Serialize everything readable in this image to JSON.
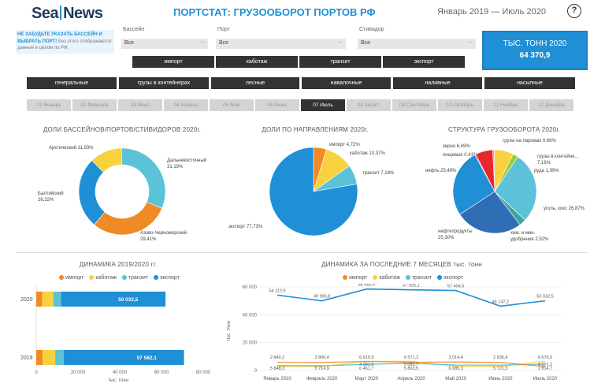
{
  "header": {
    "logo_left": "Sea",
    "logo_right": "News",
    "title": "ПОРТСТАТ: ГРУЗООБОРОТ ПОРТОВ РФ",
    "period": "Январь 2019 — Июль 2020",
    "help": "?"
  },
  "hint": {
    "bold": "НЕ ЗАБУДЬТЕ УКАЗАТЬ БАССЕЙН И ВЫБРАТЬ ПОРТ!",
    "text": "Без этого отображаются данные в целом по РФ."
  },
  "filters": {
    "basin": {
      "label": "Бассейн",
      "value": "Все"
    },
    "port": {
      "label": "Порт",
      "value": "Все"
    },
    "stevedore": {
      "label": "Стивидор",
      "value": "Все"
    }
  },
  "kpi": {
    "title": "ТЫС. ТОНН 2020",
    "value": "64 370,9"
  },
  "directions": [
    "импорт",
    "каботаж",
    "транзит",
    "экспорт"
  ],
  "cargo_types": [
    "генеральные",
    "грузы в контейнерах",
    "лесные",
    "навалочные",
    "наливные",
    "насыпные"
  ],
  "months": [
    "01 Январь",
    "02 Февраль",
    "03 Март",
    "04 Апрель",
    "05 Май",
    "06 Июнь",
    "07 Июль",
    "08 Август",
    "09 Сентябрь",
    "10 Октябрь",
    "11 Ноябрь",
    "12 Декабрь"
  ],
  "active_month": 6,
  "colors": {
    "import": "#f08a24",
    "cabotage": "#f7d23e",
    "transit": "#5bc2d8",
    "export": "#1f8fd6",
    "dark": "#333333",
    "accent": "#1f8fd6"
  },
  "charts": {
    "shares_basins": {
      "title": "ДОЛИ БАССЕЙНОВ/ПОРТОВ/СТИВИДОРОВ 2020г.",
      "labels": [
        "Арктический 11,93%",
        "Дальневосточный 31,19%",
        "Азово-Черноморский 29,41%",
        "Балтийский 26,32%"
      ]
    },
    "shares_directions": {
      "title": "ДОЛИ ПО НАПРАВЛЕНИЯМ 2020г.",
      "labels": [
        "импорт 4,72%",
        "каботаж 10,37%",
        "транзит 7,18%",
        "экспорт 77,73%"
      ]
    },
    "structure": {
      "title": "СТРУКТУРА ГРУЗООБОРОТА 2020г.",
      "labels": [
        "зерно 6,49%",
        "грузы на паромах 0,66%",
        "пищевые 0,41%",
        "грузы в контейне... 7,16%",
        "руда 1,99%",
        "нефть 25,49%",
        "уголь, кокс 26,87%",
        "нефтепродукты 25,30%",
        "хим. и мин. удобрения 2,52%"
      ]
    },
    "dynamics_year": {
      "title": "ДИНАМИКА 2019/2020 гг.",
      "legend": [
        "импорт",
        "каботаж",
        "транзит",
        "экспорт"
      ],
      "xlabel": "тыс. тонн",
      "ticks": [
        "0",
        "20 000",
        "40 000",
        "60 000",
        "80 000"
      ],
      "rows": [
        {
          "year": "2020",
          "value_label": "50 032,5"
        },
        {
          "year": "2019",
          "value_label": "57 582,1"
        }
      ]
    },
    "dynamics_months": {
      "title": "ДИНАМИКА ЗА ПОСЛЕДНИЕ 7 МЕСЯЦЕВ тыс. тонн",
      "legend": [
        "импорт",
        "каботаж",
        "транзит",
        "экспорт"
      ],
      "ylabel": "тыс. тонн",
      "yticks": [
        "60 000",
        "40 000",
        "20 000",
        "0"
      ],
      "months": [
        "Январь 2020",
        "Февраль 2020",
        "Март 2020",
        "Апрель 2020",
        "Май 2020",
        "Июнь 2020",
        "Июль 2020"
      ],
      "export_labels": [
        "54 112,9",
        "49 995,8",
        "58 483,6",
        "57 925,1",
        "57 404,5",
        "46 147,2",
        "50 032,5"
      ],
      "cabotage_labels": [
        "2 840,2",
        "2 806,4",
        "6 619,9",
        "6 571,2",
        "3 014,4",
        "2 836,4",
        "6 676,0"
      ],
      "transit_labels": [
        "",
        "",
        "4 391,9",
        "5 063,7",
        "",
        "",
        "4 571,2"
      ],
      "import_labels": [
        "5 848,3",
        "5 714,9",
        "6 461,7",
        "5 863,5",
        "6 085,3",
        "5 721,3",
        "2 814,7"
      ]
    }
  },
  "chart_data": [
    {
      "type": "pie",
      "title": "ДОЛИ БАССЕЙНОВ/ПОРТОВ/СТИВИДОРОВ 2020г.",
      "categories": [
        "Арктический",
        "Дальневосточный",
        "Азово-Черноморский",
        "Балтийский"
      ],
      "values": [
        11.93,
        31.19,
        29.41,
        26.32
      ],
      "colors": [
        "#f7d23e",
        "#5bc2d8",
        "#f08a24",
        "#1f8fd6"
      ]
    },
    {
      "type": "pie",
      "title": "ДОЛИ ПО НАПРАВЛЕНИЯМ 2020г.",
      "categories": [
        "импорт",
        "каботаж",
        "транзит",
        "экспорт"
      ],
      "values": [
        4.72,
        10.37,
        7.18,
        77.73
      ],
      "colors": [
        "#f08a24",
        "#f7d23e",
        "#5bc2d8",
        "#1f8fd6"
      ]
    },
    {
      "type": "pie",
      "title": "СТРУКТУРА ГРУЗООБОРОТА 2020г.",
      "categories": [
        "грузы на паромах",
        "грузы в контейне...",
        "руда",
        "уголь, кокс",
        "хим. и мин. удобрения",
        "нефтепродукты",
        "нефть",
        "пищевые",
        "зерно"
      ],
      "values": [
        0.66,
        7.16,
        1.99,
        26.87,
        2.52,
        25.3,
        25.49,
        0.41,
        6.49
      ],
      "colors": [
        "#b0b0b0",
        "#f7d23e",
        "#9acd32",
        "#5bc2d8",
        "#3aa7a0",
        "#2f6db5",
        "#1f8fd6",
        "#8a5ab5",
        "#e8262e"
      ]
    },
    {
      "type": "bar",
      "title": "ДИНАМИКА 2019/2020 гг.",
      "categories": [
        "2020",
        "2019"
      ],
      "xlabel": "тыс. тонн",
      "xlim": [
        0,
        80000
      ],
      "series": [
        {
          "name": "импорт",
          "values": [
            2900,
            3000
          ]
        },
        {
          "name": "каботаж",
          "values": [
            5300,
            6100
          ]
        },
        {
          "name": "транзит",
          "values": [
            3700,
            4100
          ]
        },
        {
          "name": "экспорт",
          "values": [
            50032.5,
            57582.1
          ]
        }
      ]
    },
    {
      "type": "line",
      "title": "ДИНАМИКА ЗА ПОСЛЕДНИЕ 7 МЕСЯЦЕВ тыс. тонн",
      "ylabel": "тыс. тонн",
      "x": [
        "Январь 2020",
        "Февраль 2020",
        "Март 2020",
        "Апрель 2020",
        "Май 2020",
        "Июнь 2020",
        "Июль 2020"
      ],
      "ylim": [
        0,
        60000
      ],
      "series": [
        {
          "name": "экспорт",
          "values": [
            54112.9,
            49995.8,
            58483.6,
            57925.1,
            57404.5,
            46147.2,
            50032.5
          ]
        },
        {
          "name": "каботаж",
          "values": [
            2840.2,
            2806.4,
            6619.9,
            6571.2,
            3014.4,
            2836.4,
            6676.0
          ]
        },
        {
          "name": "транзит",
          "values": [
            3500,
            3400,
            4391.9,
            5063.7,
            3900,
            3800,
            4571.2
          ]
        },
        {
          "name": "импорт",
          "values": [
            5848.3,
            5714.9,
            6461.7,
            5863.5,
            6085.3,
            5721.3,
            2814.7
          ]
        }
      ]
    }
  ]
}
